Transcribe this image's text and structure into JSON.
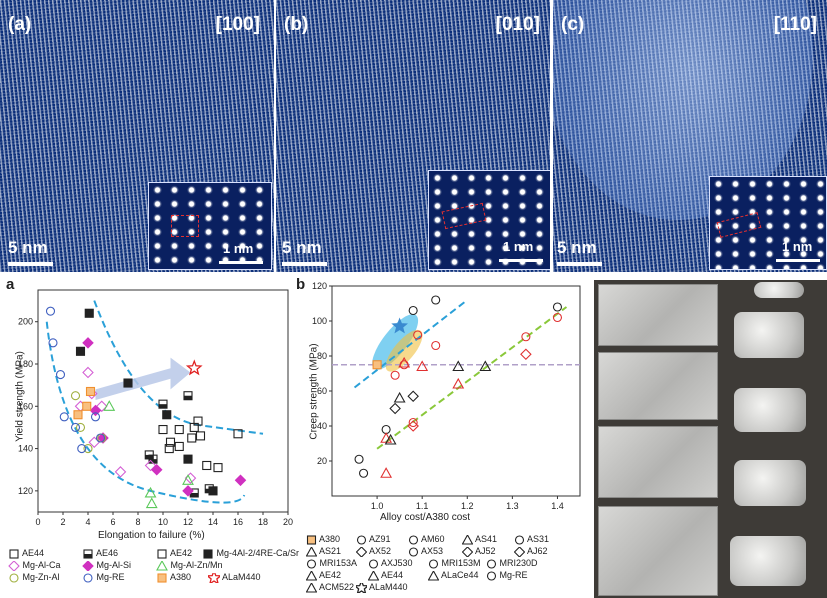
{
  "top_panels": [
    {
      "label": "(a)",
      "direction": "[100]",
      "scale": "5 nm",
      "inset_scale": "1 nm"
    },
    {
      "label": "(b)",
      "direction": "[010]",
      "scale": "5 nm",
      "inset_scale": "1 nm"
    },
    {
      "label": "(c)",
      "direction": "[110]",
      "scale": "5 nm",
      "inset_scale": "1 nm"
    }
  ],
  "chart_a": {
    "label": "a",
    "type": "scatter",
    "xlabel": "Elongation to failure (%)",
    "ylabel": "Yield strength (MPa)",
    "xlim": [
      0,
      20
    ],
    "ylim": [
      110,
      215
    ],
    "xticks": [
      "0",
      "2",
      "4",
      "6",
      "8",
      "10",
      "12",
      "14",
      "16",
      "18",
      "20"
    ],
    "yticks": [
      "120",
      "140",
      "160",
      "180",
      "200"
    ],
    "legend": [
      {
        "text": "AE44",
        "marker": "sq-open",
        "color": "#222"
      },
      {
        "text": "AE46",
        "marker": "sq-half",
        "color": "#222"
      },
      {
        "text": "AE42",
        "marker": "sq-open",
        "color": "#222"
      },
      {
        "text": "Mg-4Al-2/4RE-Ca/Sr",
        "marker": "sq-fill",
        "color": "#222"
      },
      {
        "text": "Mg-Al-Ca",
        "marker": "diamond",
        "color": "#d460d4"
      },
      {
        "text": "Mg-Al-Si",
        "marker": "diamond-fill",
        "color": "#d030c0"
      },
      {
        "text": "Mg-Al-Zn/Mn",
        "marker": "triangle",
        "color": "#5ac85a"
      },
      {
        "text": "Mg-Zn-Al",
        "marker": "circle",
        "color": "#a0b040"
      },
      {
        "text": "Mg-RE",
        "marker": "circle",
        "color": "#4060c0"
      },
      {
        "text": "A380",
        "marker": "sq-x",
        "color": "#f09030"
      },
      {
        "text": "ALaM440",
        "marker": "star",
        "color": "#e02020"
      }
    ]
  },
  "chart_b": {
    "label": "b",
    "type": "scatter",
    "xlabel": "Alloy cost/A380 cost",
    "ylabel": "Creep strength (MPa)",
    "xlim": [
      0.9,
      1.45
    ],
    "ylim": [
      0,
      120
    ],
    "xticks": [
      "1.0",
      "1.1",
      "1.2",
      "1.3",
      "1.4"
    ],
    "yticks": [
      "20",
      "40",
      "60",
      "80",
      "100",
      "120"
    ],
    "legend_rows": [
      [
        "A380",
        "AZ91",
        "AM60",
        "AS41",
        "AS31"
      ],
      [
        "AS21",
        "AX52",
        "AX53",
        "AJ52",
        "AJ62"
      ],
      [
        "MRI153A",
        "AXJ530",
        "MRI153M",
        "MRI230D"
      ],
      [
        "AE42",
        "AE44",
        "ALaCe44",
        "Mg-RE"
      ],
      [
        "ACM522",
        "ALaM440"
      ]
    ]
  },
  "chart_data": [
    {
      "type": "scatter",
      "xlabel": "Elongation to failure (%)",
      "ylabel": "Yield strength (MPa)",
      "xlim": [
        0,
        20
      ],
      "ylim": [
        110,
        215
      ],
      "series": [
        {
          "name": "AE44",
          "color": "#222",
          "marker": "sq-open",
          "points": [
            [
              10.6,
              143
            ],
            [
              11.3,
              141
            ],
            [
              12.5,
              150
            ],
            [
              12.8,
              153
            ],
            [
              13.0,
              146
            ],
            [
              13.5,
              132
            ],
            [
              14.4,
              131
            ],
            [
              16.0,
              147
            ]
          ]
        },
        {
          "name": "AE46",
          "color": "#222",
          "marker": "sq-half",
          "points": [
            [
              8.9,
              137
            ],
            [
              9.2,
              135
            ],
            [
              10.0,
              161
            ],
            [
              12.0,
              165
            ],
            [
              12.5,
              119
            ],
            [
              13.7,
              121
            ]
          ]
        },
        {
          "name": "AE42",
          "color": "#222",
          "marker": "sq-open",
          "points": [
            [
              10.0,
              149
            ],
            [
              10.5,
              140
            ],
            [
              11.3,
              149
            ],
            [
              12.3,
              145
            ]
          ]
        },
        {
          "name": "Mg-4Al-2/4RE-Ca/Sr",
          "color": "#222",
          "marker": "sq-fill",
          "points": [
            [
              3.4,
              186
            ],
            [
              4.1,
              204
            ],
            [
              7.2,
              171
            ],
            [
              10.3,
              156
            ],
            [
              12.0,
              135
            ],
            [
              14.0,
              120
            ]
          ]
        },
        {
          "name": "Mg-Al-Ca",
          "color": "#d460d4",
          "marker": "diamond",
          "points": [
            [
              3.4,
              160
            ],
            [
              4.0,
              176
            ],
            [
              4.3,
              166
            ],
            [
              4.5,
              143
            ],
            [
              5.1,
              160
            ],
            [
              6.6,
              129
            ],
            [
              9.0,
              132
            ],
            [
              12.2,
              126
            ]
          ]
        },
        {
          "name": "Mg-Al-Si",
          "color": "#d030c0",
          "marker": "diamond-fill",
          "points": [
            [
              4.0,
              190
            ],
            [
              4.6,
              158
            ],
            [
              5.2,
              145
            ],
            [
              9.5,
              130
            ],
            [
              12.0,
              120
            ],
            [
              16.2,
              125
            ]
          ]
        },
        {
          "name": "Mg-Al-Zn/Mn",
          "color": "#5ac85a",
          "marker": "triangle",
          "points": [
            [
              5.7,
              160
            ],
            [
              9.0,
              119
            ],
            [
              9.1,
              114
            ],
            [
              12.0,
              125
            ]
          ]
        },
        {
          "name": "Mg-Zn-Al",
          "color": "#a0b040",
          "marker": "circle",
          "points": [
            [
              3.0,
              165
            ],
            [
              3.4,
              150
            ],
            [
              4.0,
              140
            ],
            [
              5.1,
              145
            ]
          ]
        },
        {
          "name": "Mg-RE",
          "color": "#4060c0",
          "marker": "circle",
          "points": [
            [
              1.0,
              205
            ],
            [
              1.2,
              190
            ],
            [
              1.8,
              175
            ],
            [
              2.1,
              155
            ],
            [
              3.0,
              150
            ],
            [
              3.5,
              140
            ],
            [
              4.6,
              155
            ],
            [
              5.0,
              145
            ]
          ]
        },
        {
          "name": "A380",
          "color": "#f09030",
          "marker": "sq-x",
          "points": [
            [
              3.2,
              156
            ],
            [
              3.9,
              160
            ],
            [
              4.2,
              167
            ]
          ]
        },
        {
          "name": "ALaM440",
          "color": "#e02020",
          "marker": "star",
          "points": [
            [
              12.5,
              178
            ]
          ]
        }
      ]
    },
    {
      "type": "scatter",
      "xlabel": "Alloy cost/A380 cost",
      "ylabel": "Creep strength (MPa)",
      "xlim": [
        0.9,
        1.45
      ],
      "ylim": [
        0,
        120
      ],
      "series": [
        {
          "name": "A380",
          "color": "#f09030",
          "points": [
            [
              1.0,
              75
            ]
          ]
        },
        {
          "name": "AZ91",
          "color": "#222",
          "points": [
            [
              0.97,
              13
            ],
            [
              1.4,
              108
            ]
          ]
        },
        {
          "name": "AM60",
          "color": "#222",
          "points": [
            [
              0.96,
              21
            ]
          ]
        },
        {
          "name": "AS41",
          "color": "#e03030",
          "points": [
            [
              1.02,
              13
            ]
          ]
        },
        {
          "name": "AS31",
          "color": "#222",
          "points": [
            [
              1.02,
              38
            ]
          ]
        },
        {
          "name": "AS21",
          "color": "#e03030",
          "points": [
            [
              1.02,
              33
            ]
          ]
        },
        {
          "name": "AX52",
          "color": "#222",
          "points": [
            [
              1.08,
              57
            ]
          ]
        },
        {
          "name": "AX53",
          "color": "#e03030",
          "points": [
            [
              1.08,
              42
            ],
            [
              1.33,
              91
            ]
          ]
        },
        {
          "name": "AJ52",
          "color": "#222",
          "points": [
            [
              1.04,
              50
            ]
          ]
        },
        {
          "name": "AJ62",
          "color": "#e03030",
          "points": [
            [
              1.08,
              40
            ],
            [
              1.33,
              81
            ]
          ]
        },
        {
          "name": "MRI153A",
          "color": "#e03030",
          "points": [
            [
              1.13,
              86
            ]
          ]
        },
        {
          "name": "AXJ530",
          "color": "#222",
          "points": [
            [
              1.08,
              106
            ]
          ]
        },
        {
          "name": "MRI153M",
          "color": "#e03030",
          "points": [
            [
              1.06,
              75
            ],
            [
              1.09,
              92
            ]
          ]
        },
        {
          "name": "MRI230D",
          "color": "#222",
          "points": [
            [
              1.13,
              112
            ]
          ]
        },
        {
          "name": "AE42",
          "color": "#e03030",
          "points": [
            [
              1.06,
              76
            ],
            [
              1.18,
              64
            ]
          ]
        },
        {
          "name": "AE44",
          "color": "#e03030",
          "points": [
            [
              1.1,
              74
            ]
          ]
        },
        {
          "name": "ALaCe44",
          "color": "#222",
          "points": [
            [
              1.18,
              74
            ],
            [
              1.24,
              74
            ]
          ]
        },
        {
          "name": "Mg-RE",
          "color": "#e03030",
          "points": [
            [
              1.4,
              102
            ],
            [
              1.04,
              69
            ]
          ]
        },
        {
          "name": "ACM522",
          "color": "#222",
          "points": [
            [
              1.05,
              56
            ],
            [
              1.03,
              32
            ]
          ]
        },
        {
          "name": "ALaM440",
          "color": "#3a8ad0",
          "points": [
            [
              1.05,
              97
            ]
          ]
        }
      ]
    }
  ]
}
